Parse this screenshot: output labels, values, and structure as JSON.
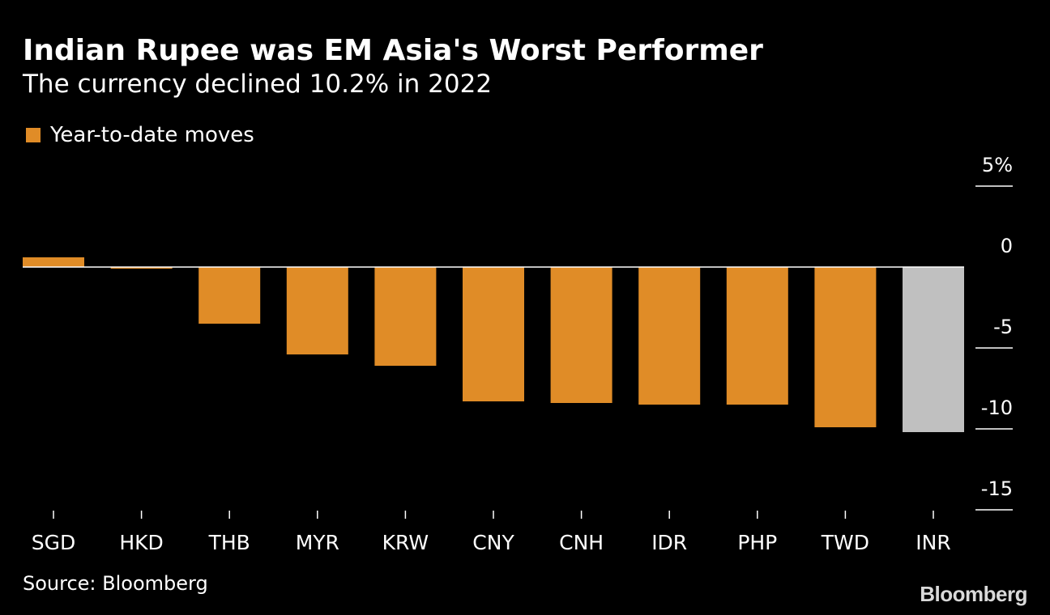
{
  "header": {
    "title": "Indian Rupee was EM Asia's Worst Performer",
    "subtitle": "The currency declined 10.2% in 2022"
  },
  "legend": {
    "label": "Year-to-date moves"
  },
  "footer": {
    "source": "Source: Bloomberg",
    "brand": "Bloomberg"
  },
  "colors": {
    "background": "#000000",
    "bar": "#e08c27",
    "highlight_bar": "#c0c0c0",
    "axis": "#ffffff",
    "text": "#ffffff"
  },
  "chart_data": {
    "type": "bar",
    "title": "Indian Rupee was EM Asia's Worst Performer",
    "subtitle": "The currency declined 10.2% in 2022",
    "categories": [
      "SGD",
      "HKD",
      "THB",
      "MYR",
      "KRW",
      "CNY",
      "CNH",
      "IDR",
      "PHP",
      "TWD",
      "INR"
    ],
    "series": [
      {
        "name": "Year-to-date moves",
        "values": [
          0.6,
          -0.1,
          -3.5,
          -5.4,
          -6.1,
          -8.3,
          -8.4,
          -8.5,
          -8.5,
          -9.9,
          -10.2
        ]
      }
    ],
    "highlight_category": "INR",
    "ylim": [
      -15,
      5
    ],
    "yticks": [
      5,
      0,
      -5,
      -10,
      -15
    ],
    "ytick_labels": [
      "5%",
      "0",
      "-5",
      "-10",
      "-15"
    ],
    "grid": false,
    "legend_position": "top-left",
    "xlabel": "",
    "ylabel": ""
  }
}
